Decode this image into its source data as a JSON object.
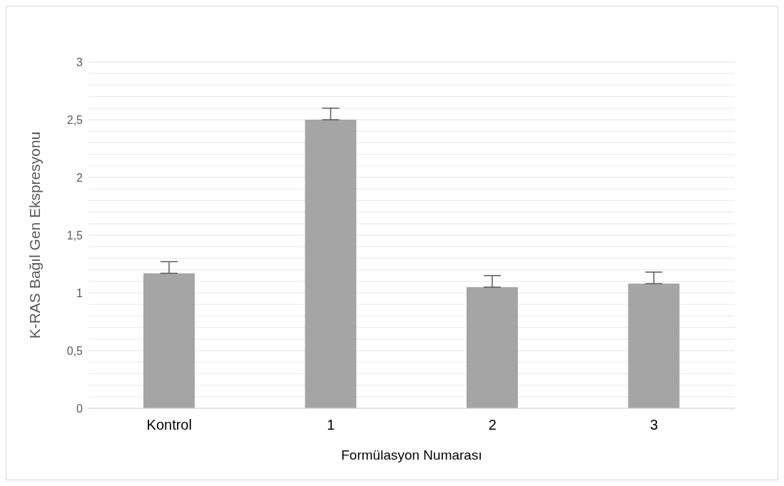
{
  "chart_data": {
    "type": "bar",
    "xlabel": "Formülasyon Numarası",
    "ylabel": "K-RAS Bağıl Gen Ekspresyonu",
    "categories": [
      "Kontrol",
      "1",
      "2",
      "3"
    ],
    "values": [
      1.17,
      2.5,
      1.05,
      1.08
    ],
    "errors": [
      [
        1.17,
        1.27
      ],
      [
        2.5,
        2.6
      ],
      [
        1.05,
        1.15
      ],
      [
        1.08,
        1.18
      ]
    ],
    "color": "#a5a5a5",
    "ylim": [
      0,
      3
    ],
    "yticks": [
      {
        "value": 0,
        "label": "0"
      },
      {
        "value": 0.1,
        "label": null
      },
      {
        "value": 0.2,
        "label": null
      },
      {
        "value": 0.3,
        "label": null
      },
      {
        "value": 0.4,
        "label": null
      },
      {
        "value": 0.5,
        "label": "0,5"
      },
      {
        "value": 0.6,
        "label": null
      },
      {
        "value": 0.7,
        "label": null
      },
      {
        "value": 0.8,
        "label": null
      },
      {
        "value": 0.9,
        "label": null
      },
      {
        "value": 1,
        "label": "1"
      },
      {
        "value": 1.1,
        "label": null
      },
      {
        "value": 1.2,
        "label": null
      },
      {
        "value": 1.3,
        "label": null
      },
      {
        "value": 1.4,
        "label": null
      },
      {
        "value": 1.5,
        "label": "1,5"
      },
      {
        "value": 1.6,
        "label": null
      },
      {
        "value": 1.7,
        "label": null
      },
      {
        "value": 1.8,
        "label": null
      },
      {
        "value": 1.9,
        "label": null
      },
      {
        "value": 2,
        "label": "2"
      },
      {
        "value": 2.1,
        "label": null
      },
      {
        "value": 2.2,
        "label": null
      },
      {
        "value": 2.3,
        "label": null
      },
      {
        "value": 2.4,
        "label": null
      },
      {
        "value": 2.5,
        "label": "2,5"
      },
      {
        "value": 2.6,
        "label": null
      },
      {
        "value": 2.7,
        "label": null
      },
      {
        "value": 2.8,
        "label": null
      },
      {
        "value": 2.9,
        "label": null
      },
      {
        "value": 3,
        "label": "3"
      }
    ],
    "grid": "y"
  }
}
